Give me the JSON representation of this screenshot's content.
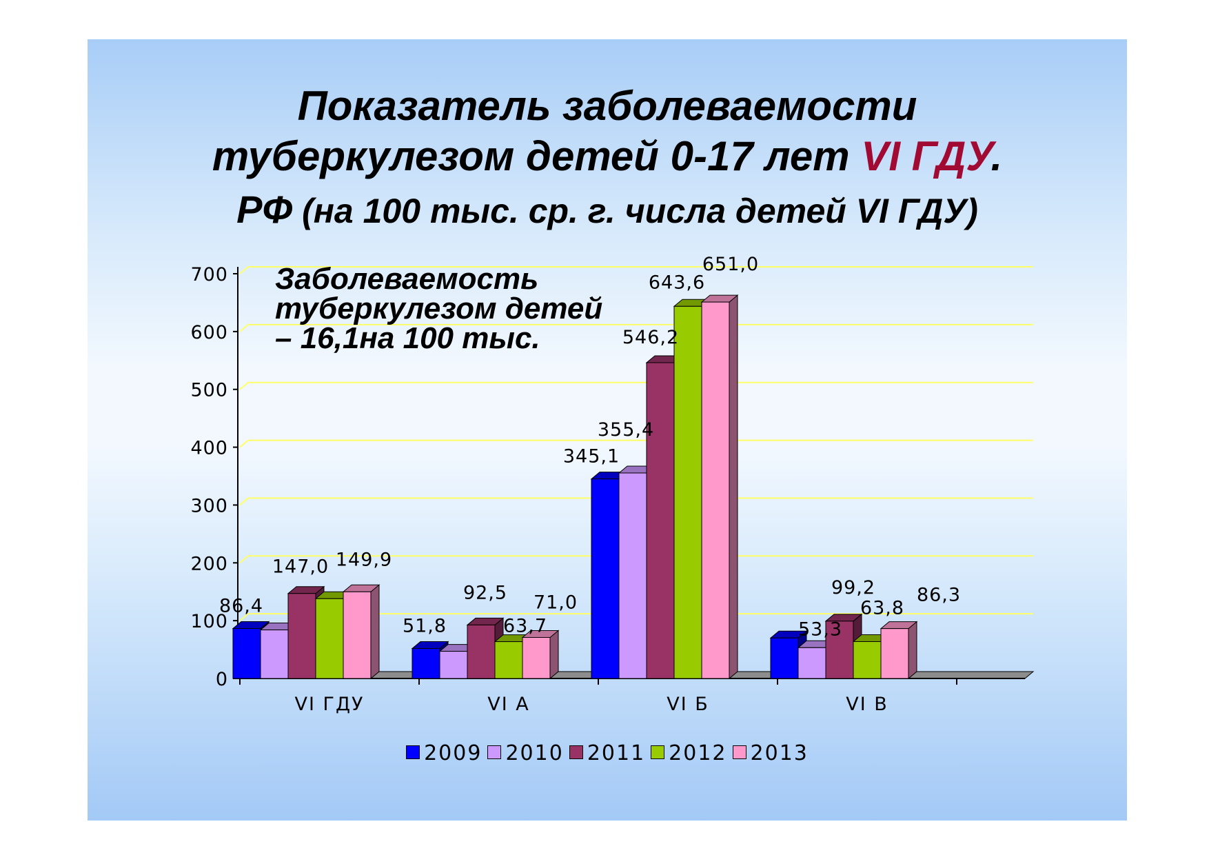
{
  "title": {
    "line1": "Показатель заболеваемости",
    "line2_main": "туберкулезом детей 0-17 лет ",
    "line2_highlight": "VI ГДУ",
    "line2_end": ".",
    "line3_main": "РФ",
    "line3_paren": " (на 100 тыс. ср. г. числа  детей VI ГДУ)"
  },
  "note": {
    "line1": "Заболеваемость",
    "line2": "туберкулезом детей",
    "line3": "– 16,1на 100 тыс."
  },
  "colors": {
    "title_highlight": "#a10a32",
    "series": [
      "#0000ff",
      "#cc99ff",
      "#993366",
      "#99cc00",
      "#ff99cc"
    ],
    "gridline": "#ffff66"
  },
  "chart_data": {
    "type": "bar",
    "categories": [
      "VI ГДУ",
      "VI А",
      "VI Б",
      "VI В"
    ],
    "y_ticks": [
      "0",
      "100",
      "200",
      "300",
      "400",
      "500",
      "600",
      "700"
    ],
    "ylim": [
      0,
      700
    ],
    "grid": true,
    "legend_position": "bottom",
    "series": [
      {
        "name": "2009",
        "values": [
          86.4,
          51.8,
          345.1,
          70
        ]
      },
      {
        "name": "2010",
        "values": [
          84,
          47,
          355.4,
          53.3
        ]
      },
      {
        "name": "2011",
        "values": [
          147.0,
          92.5,
          546.2,
          99.2
        ]
      },
      {
        "name": "2012",
        "values": [
          138,
          63.7,
          643.6,
          63.8
        ]
      },
      {
        "name": "2013",
        "values": [
          149.9,
          71.0,
          651.0,
          86.3
        ]
      }
    ],
    "data_labels": [
      {
        "category": 0,
        "series": 0,
        "text": "86,4"
      },
      {
        "category": 0,
        "series": 2,
        "text": "147,0"
      },
      {
        "category": 0,
        "series": 4,
        "text": "149,9"
      },
      {
        "category": 1,
        "series": 0,
        "text": "51,8"
      },
      {
        "category": 1,
        "series": 2,
        "text": "92,5"
      },
      {
        "category": 1,
        "series": 3,
        "text": "63,7"
      },
      {
        "category": 1,
        "series": 4,
        "text": "71,0"
      },
      {
        "category": 2,
        "series": 0,
        "text": "345,1"
      },
      {
        "category": 2,
        "series": 1,
        "text": "355,4"
      },
      {
        "category": 2,
        "series": 2,
        "text": "546,2"
      },
      {
        "category": 2,
        "series": 3,
        "text": "643,6"
      },
      {
        "category": 2,
        "series": 4,
        "text": "651,0"
      },
      {
        "category": 3,
        "series": 1,
        "text": "53,3"
      },
      {
        "category": 3,
        "series": 2,
        "text": "99,2"
      },
      {
        "category": 3,
        "series": 3,
        "text": "63,8"
      },
      {
        "category": 3,
        "series": 4,
        "text": "86,3"
      }
    ]
  }
}
